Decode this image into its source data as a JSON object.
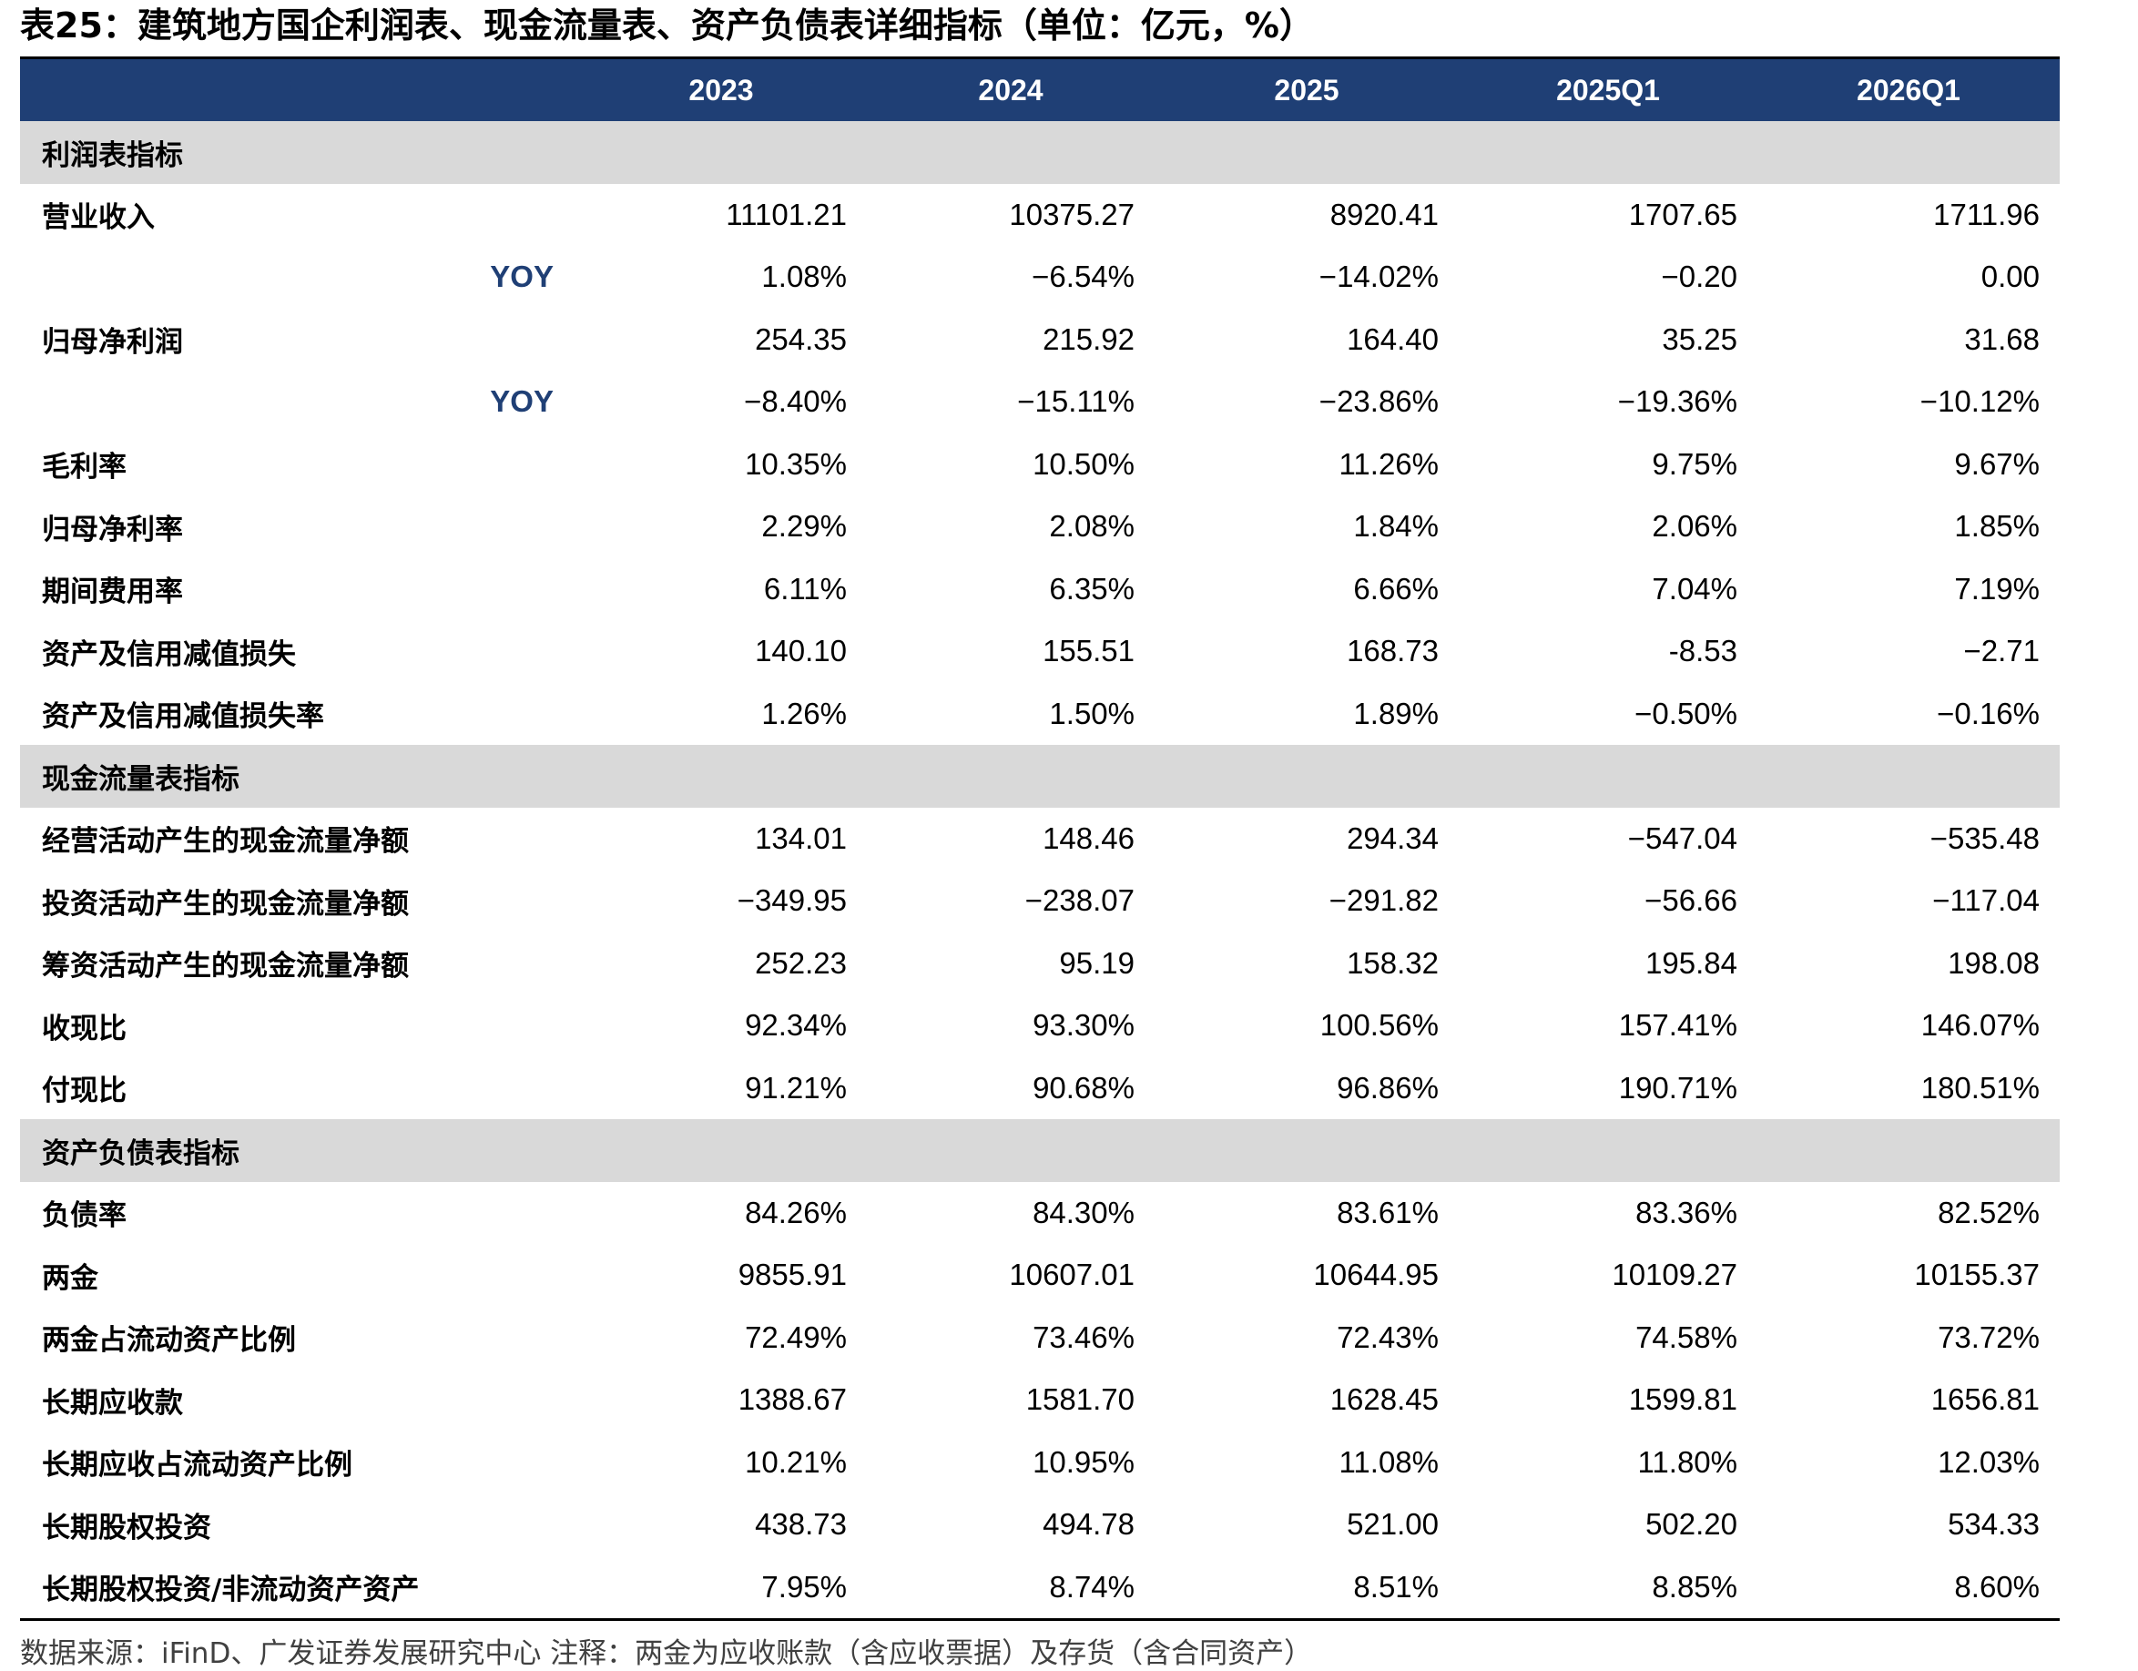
{
  "title": "表25：建筑地方国企利润表、现金流量表、资产负债表详细指标（单位：亿元，%）",
  "columns": [
    "2023",
    "2024",
    "2025",
    "2025Q1",
    "2026Q1"
  ],
  "sections": [
    {
      "label": "利润表指标",
      "rows": [
        {
          "label": "营业收入",
          "sub": false,
          "values": [
            "11101.21",
            "10375.27",
            "8920.41",
            "1707.65",
            "1711.96"
          ]
        },
        {
          "label": "YOY",
          "sub": true,
          "values": [
            "1.08%",
            "−6.54%",
            "−14.02%",
            "−0.20",
            "0.00"
          ]
        },
        {
          "label": "归母净利润",
          "sub": false,
          "values": [
            "254.35",
            "215.92",
            "164.40",
            "35.25",
            "31.68"
          ]
        },
        {
          "label": "YOY",
          "sub": true,
          "values": [
            "−8.40%",
            "−15.11%",
            "−23.86%",
            "−19.36%",
            "−10.12%"
          ]
        },
        {
          "label": "毛利率",
          "sub": false,
          "values": [
            "10.35%",
            "10.50%",
            "11.26%",
            "9.75%",
            "9.67%"
          ]
        },
        {
          "label": "归母净利率",
          "sub": false,
          "values": [
            "2.29%",
            "2.08%",
            "1.84%",
            "2.06%",
            "1.85%"
          ]
        },
        {
          "label": "期间费用率",
          "sub": false,
          "values": [
            "6.11%",
            "6.35%",
            "6.66%",
            "7.04%",
            "7.19%"
          ]
        },
        {
          "label": "资产及信用减值损失",
          "sub": false,
          "values": [
            "140.10",
            "155.51",
            "168.73",
            "-8.53",
            "−2.71"
          ]
        },
        {
          "label": "资产及信用减值损失率",
          "sub": false,
          "values": [
            "1.26%",
            "1.50%",
            "1.89%",
            "−0.50%",
            "−0.16%"
          ]
        }
      ]
    },
    {
      "label": "现金流量表指标",
      "rows": [
        {
          "label": "经营活动产生的现金流量净额",
          "sub": false,
          "values": [
            "134.01",
            "148.46",
            "294.34",
            "−547.04",
            "−535.48"
          ]
        },
        {
          "label": "投资活动产生的现金流量净额",
          "sub": false,
          "values": [
            "−349.95",
            "−238.07",
            "−291.82",
            "−56.66",
            "−117.04"
          ]
        },
        {
          "label": "筹资活动产生的现金流量净额",
          "sub": false,
          "values": [
            "252.23",
            "95.19",
            "158.32",
            "195.84",
            "198.08"
          ]
        },
        {
          "label": "收现比",
          "sub": false,
          "values": [
            "92.34%",
            "93.30%",
            "100.56%",
            "157.41%",
            "146.07%"
          ]
        },
        {
          "label": "付现比",
          "sub": false,
          "values": [
            "91.21%",
            "90.68%",
            "96.86%",
            "190.71%",
            "180.51%"
          ]
        }
      ]
    },
    {
      "label": "资产负债表指标",
      "rows": [
        {
          "label": "负债率",
          "sub": false,
          "values": [
            "84.26%",
            "84.30%",
            "83.61%",
            "83.36%",
            "82.52%"
          ]
        },
        {
          "label": "两金",
          "sub": false,
          "values": [
            "9855.91",
            "10607.01",
            "10644.95",
            "10109.27",
            "10155.37"
          ]
        },
        {
          "label": "两金占流动资产比例",
          "sub": false,
          "values": [
            "72.49%",
            "73.46%",
            "72.43%",
            "74.58%",
            "73.72%"
          ]
        },
        {
          "label": "长期应收款",
          "sub": false,
          "values": [
            "1388.67",
            "1581.70",
            "1628.45",
            "1599.81",
            "1656.81"
          ]
        },
        {
          "label": "长期应收占流动资产比例",
          "sub": false,
          "values": [
            "10.21%",
            "10.95%",
            "11.08%",
            "11.80%",
            "12.03%"
          ]
        },
        {
          "label": "长期股权投资",
          "sub": false,
          "values": [
            "438.73",
            "494.78",
            "521.00",
            "502.20",
            "534.33"
          ]
        },
        {
          "label": "长期股权投资/非流动资产资产",
          "sub": false,
          "values": [
            "7.95%",
            "8.74%",
            "8.51%",
            "8.85%",
            "8.60%"
          ]
        }
      ]
    }
  ],
  "footer": "数据来源：iFinD、广发证券发展研究中心  注释：两金为应收账款（含应收票据）及存货（含合同资产）",
  "colors": {
    "header_bg": "#1f3f75",
    "section_bg": "#d9d9d9",
    "yoy_label": "#1f3f75"
  }
}
